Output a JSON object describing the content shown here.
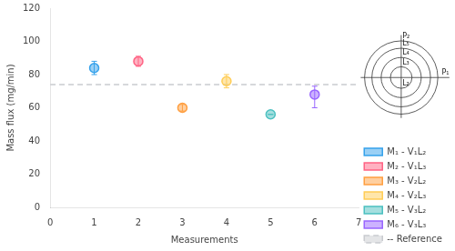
{
  "chart_data": {
    "type": "scatter",
    "xlabel": "Measurements",
    "ylabel": "Mass flux (mg/min)",
    "xlim": [
      0,
      7
    ],
    "ylim": [
      0,
      120
    ],
    "xticks": [
      0,
      1,
      2,
      3,
      4,
      5,
      6,
      7
    ],
    "yticks": [
      0,
      20,
      40,
      60,
      80,
      100,
      120
    ],
    "grid": false,
    "legend": "lower right",
    "series": [
      {
        "name": "M₁ - V₁L₂",
        "x": [
          1
        ],
        "values": [
          84
        ],
        "yerr_low": [
          4
        ],
        "yerr_high": [
          4
        ]
      },
      {
        "name": "M₂ - V₁L₃",
        "x": [
          2
        ],
        "values": [
          88
        ],
        "yerr_low": [
          3
        ],
        "yerr_high": [
          3
        ]
      },
      {
        "name": "M₃ - V₂L₂",
        "x": [
          3
        ],
        "values": [
          60
        ],
        "yerr_low": [
          2
        ],
        "yerr_high": [
          2
        ]
      },
      {
        "name": "M₄ - V₂L₃",
        "x": [
          4
        ],
        "values": [
          76
        ],
        "yerr_low": [
          4
        ],
        "yerr_high": [
          4
        ]
      },
      {
        "name": "M₅ - V₃L₂",
        "x": [
          5
        ],
        "values": [
          56
        ],
        "yerr_low": [
          0
        ],
        "yerr_high": [
          0
        ]
      },
      {
        "name": "M₆ - V₃L₃",
        "x": [
          6
        ],
        "values": [
          68
        ],
        "yerr_low": [
          8
        ],
        "yerr_high": [
          5
        ]
      },
      {
        "name": "-- Reference",
        "type": "hline",
        "line_style": "dashed",
        "values": [
          74
        ]
      }
    ],
    "annotations": [
      "P₂",
      "L₅",
      "L₄",
      "L₃",
      "L₂",
      "P₁"
    ]
  }
}
